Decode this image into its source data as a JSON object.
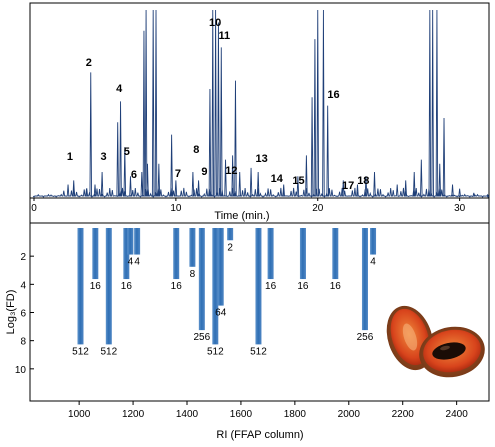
{
  "chart_data": [
    {
      "type": "line",
      "xlabel": "Time (min.)",
      "ylabel": "",
      "xlim": [
        0,
        32
      ],
      "xticks": [
        0,
        10,
        20,
        30
      ],
      "tick_labels": [
        "0",
        "10",
        "20",
        "30"
      ],
      "grid": false,
      "peak_labels": [
        {
          "label": "1",
          "x": 2.6
        },
        {
          "label": "2",
          "x": 4.0
        },
        {
          "label": "3",
          "x": 4.9
        },
        {
          "label": "4",
          "x": 6.0
        },
        {
          "label": "5",
          "x": 6.4
        },
        {
          "label": "6",
          "x": 6.9
        },
        {
          "label": "7",
          "x": 10.0
        },
        {
          "label": "8",
          "x": 11.3
        },
        {
          "label": "9",
          "x": 11.8
        },
        {
          "label": "10",
          "x": 12.7
        },
        {
          "label": "11",
          "x": 13.2
        },
        {
          "label": "12",
          "x": 13.7
        },
        {
          "label": "13",
          "x": 15.9
        },
        {
          "label": "14",
          "x": 16.9
        },
        {
          "label": "15",
          "x": 18.5
        },
        {
          "label": "16",
          "x": 20.9
        },
        {
          "label": "17",
          "x": 22.0
        },
        {
          "label": "18",
          "x": 23.0
        }
      ],
      "series": [
        {
          "x": [
            0,
            2.4,
            2.8,
            3.7,
            4.0,
            4.3,
            4.8,
            5.9,
            6.1,
            6.4,
            6.8,
            7.6,
            7.75,
            7.9,
            8.0,
            8.4,
            8.6,
            8.8,
            9.7,
            10.0,
            11.2,
            11.6,
            12.4,
            12.6,
            12.8,
            13.0,
            13.2,
            13.5,
            14.0,
            14.2,
            14.5,
            15.3,
            15.8,
            17.6,
            18.6,
            19.2,
            19.6,
            19.8,
            20.0,
            20.4,
            20.7,
            21.8,
            22.8,
            23.4,
            24.0,
            25.6,
            26.2,
            26.8,
            27.3,
            27.9,
            28.1,
            28.4,
            28.6,
            28.9,
            29.5,
            30.0,
            31.0,
            32.0
          ],
          "values": [
            0,
            3,
            4,
            2,
            30,
            3,
            6,
            18,
            23,
            12,
            5,
            6,
            40,
            45,
            8,
            45,
            45,
            8,
            15,
            4,
            6,
            4,
            26,
            45,
            45,
            42,
            36,
            9,
            10,
            28,
            6,
            7,
            6,
            3,
            5,
            10,
            24,
            38,
            45,
            45,
            22,
            4,
            3,
            5,
            6,
            3,
            4,
            6,
            9,
            45,
            45,
            45,
            8,
            19,
            3,
            2,
            1,
            0
          ]
        }
      ]
    },
    {
      "type": "bar",
      "xlabel": "RI (FFAP column)",
      "ylabel": "Log₃(FD)",
      "xlim": [
        840,
        2520
      ],
      "ylim": [
        0,
        12
      ],
      "y_inverted": true,
      "xticks": [
        1000,
        1200,
        1400,
        1600,
        1800,
        2000,
        2200,
        2400
      ],
      "yticks": [
        2,
        4,
        6,
        8,
        10
      ],
      "tick_labels_x": [
        "1000",
        "1200",
        "1400",
        "1600",
        "1800",
        "2000",
        "2200",
        "2400"
      ],
      "tick_labels_y": [
        "2",
        "4",
        "6",
        "8",
        "10"
      ],
      "grid": false,
      "bars": [
        {
          "ri": 1005,
          "log3fd": 5.7,
          "fd_label": "512"
        },
        {
          "ri": 1060,
          "log3fd": 2.5,
          "fd_label": "16"
        },
        {
          "ri": 1110,
          "log3fd": 5.7,
          "fd_label": "512"
        },
        {
          "ri": 1175,
          "log3fd": 2.5,
          "fd_label": "16"
        },
        {
          "ri": 1190,
          "log3fd": 1.3,
          "fd_label": "4"
        },
        {
          "ri": 1215,
          "log3fd": 1.3,
          "fd_label": "4"
        },
        {
          "ri": 1360,
          "log3fd": 2.5,
          "fd_label": "16"
        },
        {
          "ri": 1420,
          "log3fd": 1.9,
          "fd_label": "8"
        },
        {
          "ri": 1455,
          "log3fd": 5.0,
          "fd_label": "256"
        },
        {
          "ri": 1505,
          "log3fd": 5.7,
          "fd_label": "512"
        },
        {
          "ri": 1525,
          "log3fd": 3.8,
          "fd_label": "64"
        },
        {
          "ri": 1560,
          "log3fd": 0.6,
          "fd_label": "2"
        },
        {
          "ri": 1665,
          "log3fd": 5.7,
          "fd_label": "512"
        },
        {
          "ri": 1710,
          "log3fd": 2.5,
          "fd_label": "16"
        },
        {
          "ri": 1830,
          "log3fd": 2.5,
          "fd_label": "16"
        },
        {
          "ri": 1950,
          "log3fd": 2.5,
          "fd_label": "16"
        },
        {
          "ri": 2060,
          "log3fd": 5.0,
          "fd_label": "256"
        },
        {
          "ri": 2090,
          "log3fd": 1.3,
          "fd_label": "4"
        }
      ]
    }
  ]
}
